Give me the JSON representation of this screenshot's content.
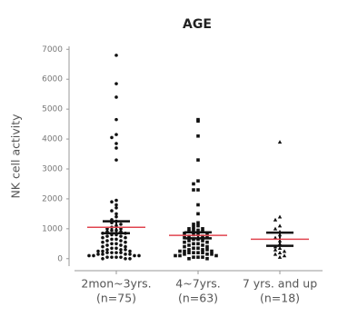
{
  "chart_data": {
    "type": "dot",
    "title": "AGE",
    "y_label": "NK cell activity",
    "categories": [
      "2mon~3yrs.",
      "4~7yrs.",
      "7 yrs. and up"
    ],
    "category_notes": [
      "(n=75)",
      "(n=63)",
      "(n=18)"
    ],
    "ylim": [
      -250,
      7100
    ],
    "yticks": [
      0,
      1000,
      2000,
      3000,
      4000,
      5000,
      6000,
      7000
    ],
    "mean_color": "#e0454f",
    "point_color": "#111",
    "groups": [
      {
        "marker": "circle",
        "mean": 1050,
        "error": 200,
        "values": [
          6800,
          5850,
          5400,
          4650,
          4150,
          4050,
          3850,
          3700,
          3300,
          1950,
          1900,
          1800,
          1700,
          1600,
          1500,
          1400,
          1300,
          1250,
          1200,
          1150,
          1100,
          1050,
          1000,
          1000,
          950,
          950,
          900,
          900,
          850,
          850,
          800,
          800,
          750,
          750,
          700,
          700,
          650,
          650,
          600,
          600,
          550,
          550,
          500,
          500,
          450,
          450,
          400,
          400,
          350,
          350,
          300,
          300,
          300,
          250,
          250,
          250,
          200,
          200,
          200,
          200,
          150,
          150,
          150,
          150,
          100,
          100,
          100,
          100,
          50,
          50,
          50,
          50,
          0,
          0,
          0
        ]
      },
      {
        "marker": "square",
        "mean": 780,
        "error": 100,
        "values": [
          4650,
          4600,
          4100,
          3300,
          2600,
          2500,
          2300,
          2300,
          1800,
          1500,
          1200,
          1150,
          1100,
          1050,
          1000,
          1000,
          950,
          950,
          900,
          900,
          850,
          850,
          800,
          800,
          750,
          750,
          700,
          700,
          650,
          650,
          600,
          600,
          550,
          550,
          500,
          500,
          450,
          450,
          400,
          400,
          350,
          350,
          300,
          300,
          300,
          250,
          250,
          250,
          200,
          200,
          200,
          200,
          150,
          150,
          150,
          100,
          100,
          100,
          50,
          50,
          50,
          0,
          0
        ]
      },
      {
        "marker": "triangle",
        "mean": 650,
        "error": 220,
        "values": [
          3900,
          1400,
          1300,
          1100,
          1000,
          900,
          800,
          700,
          600,
          500,
          400,
          350,
          300,
          250,
          200,
          150,
          100,
          50
        ]
      }
    ]
  }
}
